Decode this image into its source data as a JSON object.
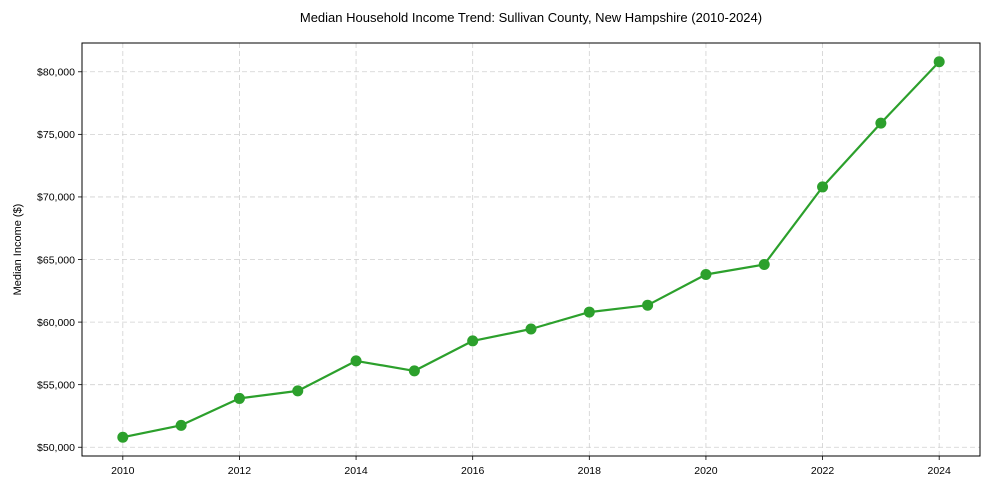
{
  "chart_data": {
    "type": "line",
    "title": "Median Household Income Trend: Sullivan County, New Hampshire (2010-2024)",
    "xlabel": "",
    "ylabel": "Median Income ($)",
    "x": [
      2010,
      2011,
      2012,
      2013,
      2014,
      2015,
      2016,
      2017,
      2018,
      2019,
      2020,
      2021,
      2022,
      2023,
      2024
    ],
    "series": [
      {
        "name": "Median Household Income",
        "color": "#2ca02c",
        "marker": "circle",
        "values": [
          50800,
          51750,
          53900,
          54500,
          56900,
          56100,
          58500,
          59450,
          60800,
          61350,
          63800,
          64600,
          70800,
          75900,
          80800
        ]
      }
    ],
    "xticks": [
      2010,
      2012,
      2014,
      2016,
      2018,
      2020,
      2022,
      2024
    ],
    "xtick_labels": [
      "2010",
      "2012",
      "2014",
      "2016",
      "2018",
      "2020",
      "2022",
      "2024"
    ],
    "yticks": [
      50000,
      55000,
      60000,
      65000,
      70000,
      75000,
      80000
    ],
    "ytick_labels": [
      "$50,000",
      "$55,000",
      "$60,000",
      "$65,000",
      "$70,000",
      "$75,000",
      "$80,000"
    ],
    "xlim": [
      2009.3,
      2024.7
    ],
    "ylim": [
      49300,
      82300
    ],
    "grid": true,
    "legend": false
  }
}
